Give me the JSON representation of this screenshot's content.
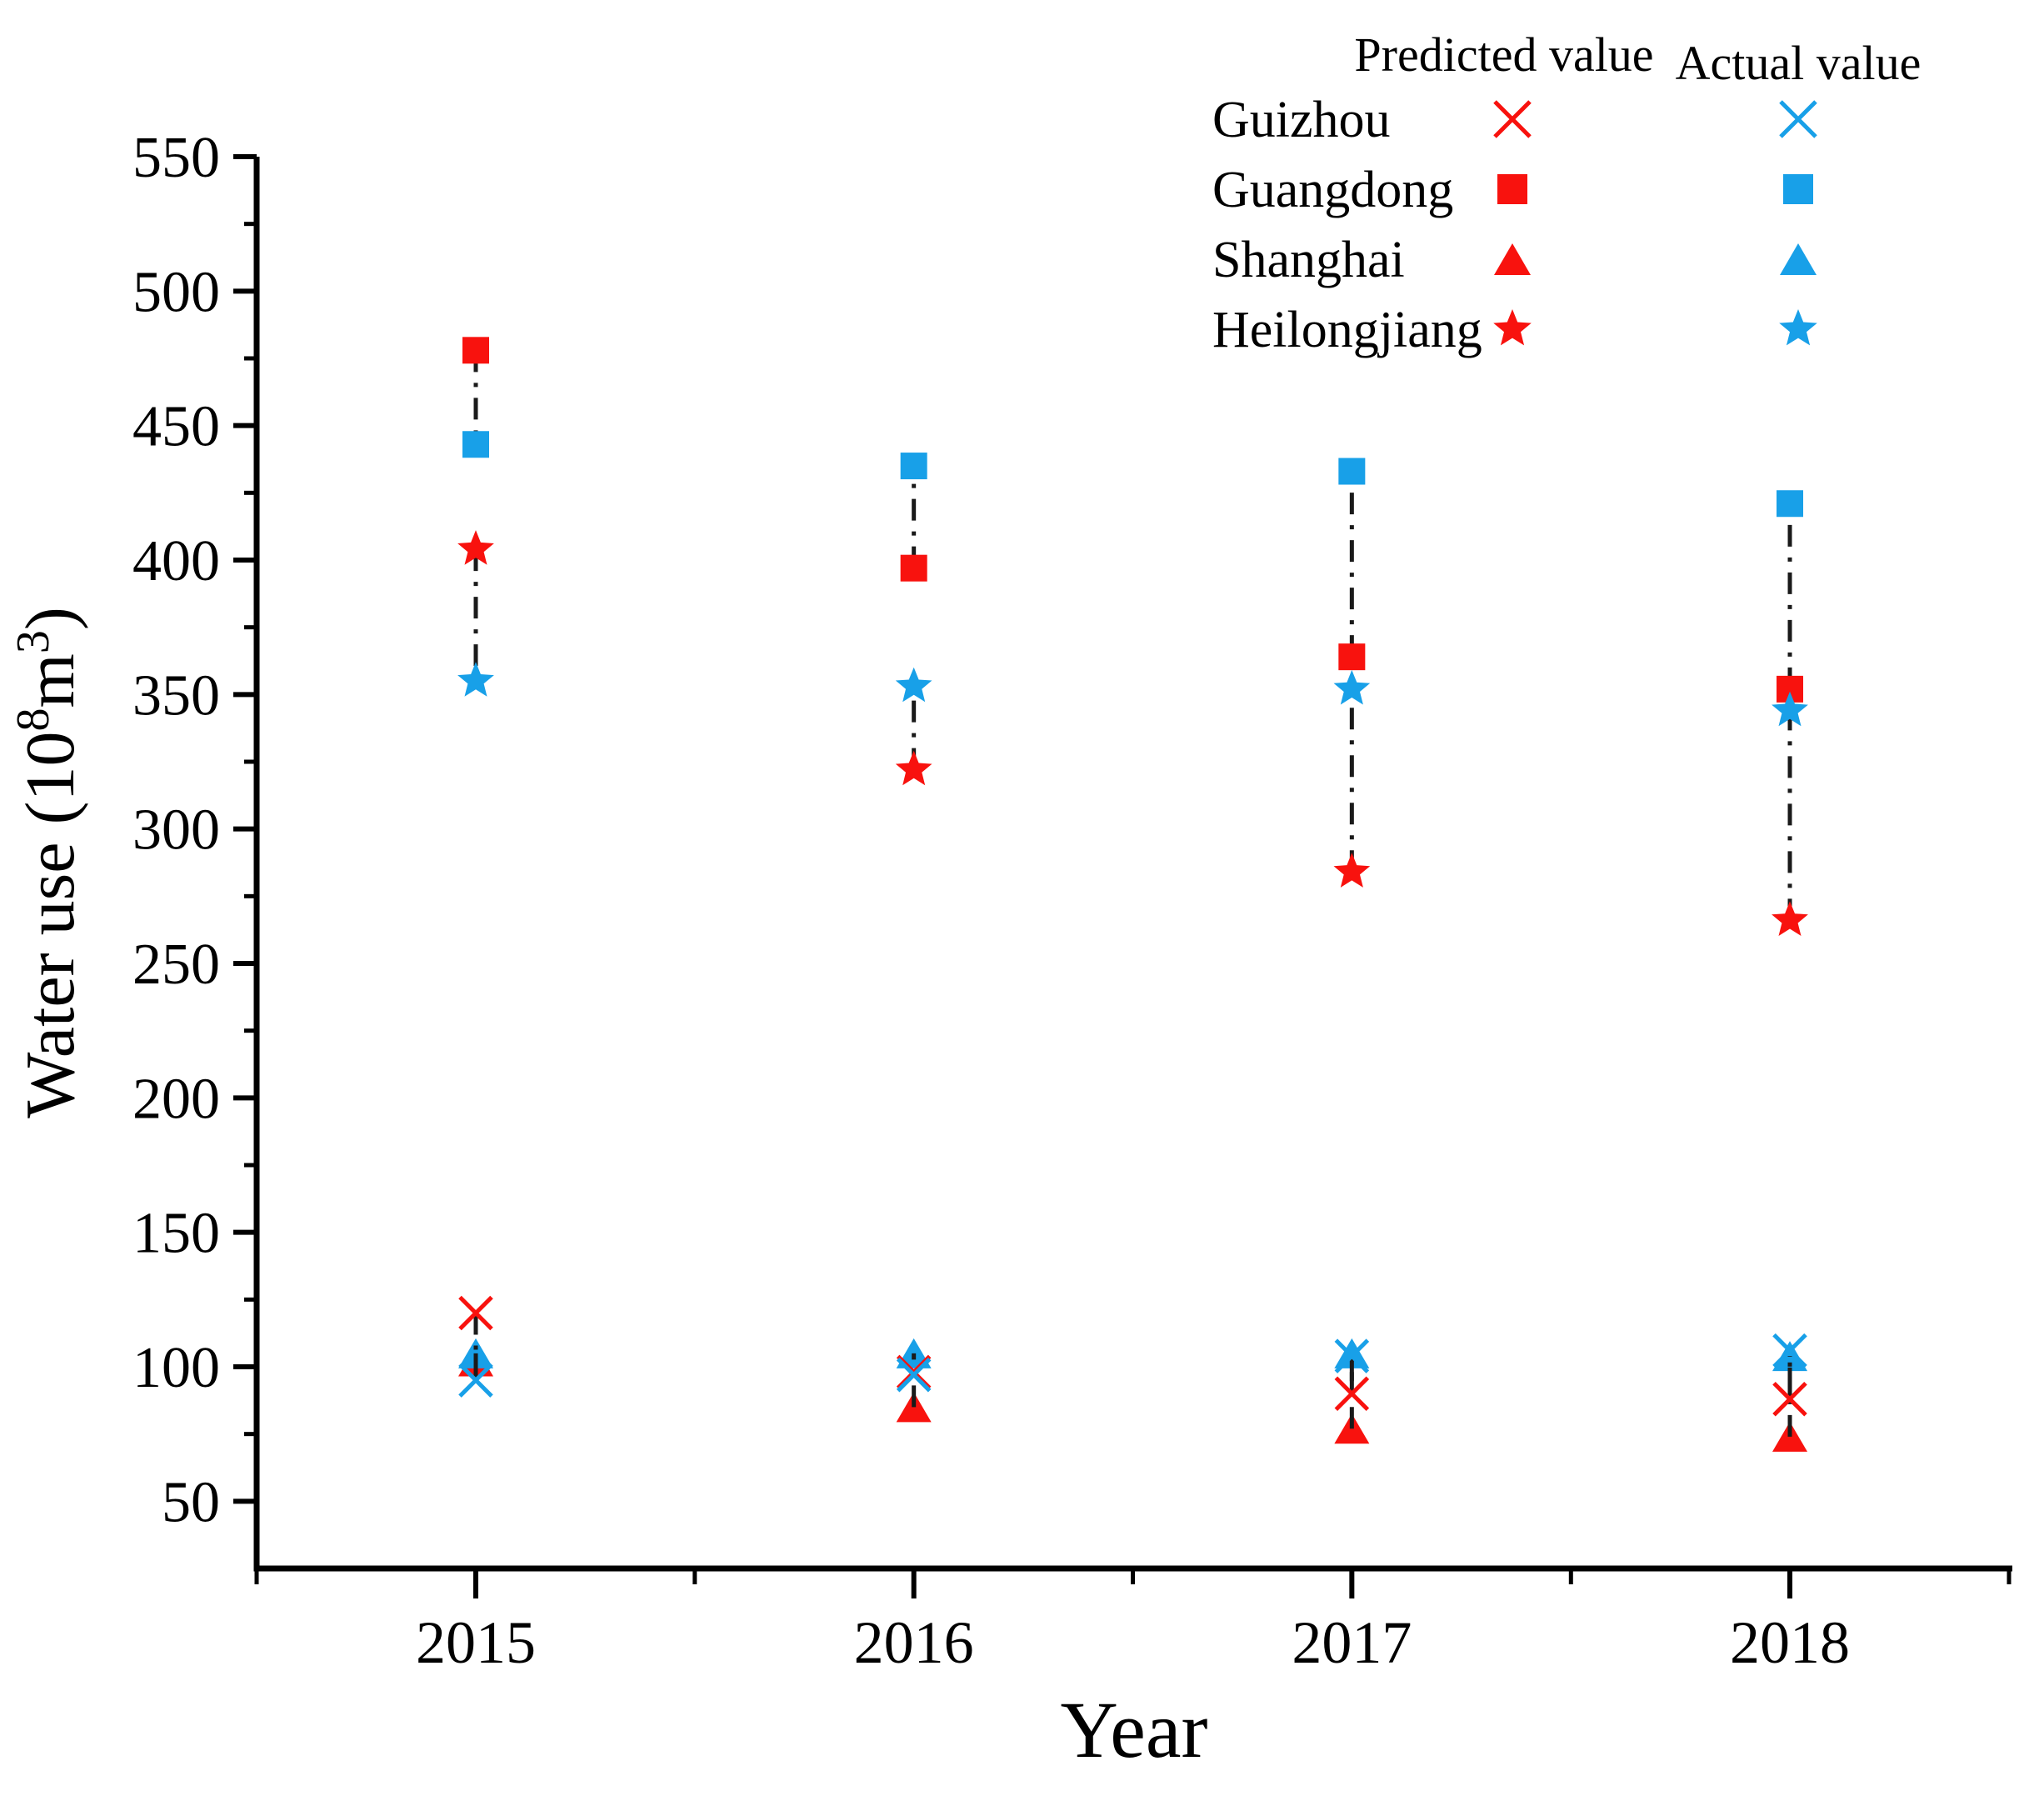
{
  "figure": {
    "y_axis_label_parts": [
      {
        "text": "Water use (10",
        "sup": false
      },
      {
        "text": "8",
        "sup": true
      },
      {
        "text": "m",
        "sup": false
      },
      {
        "text": "3",
        "sup": true
      },
      {
        "text": ")",
        "sup": false
      }
    ],
    "legend": {
      "predicted_header": "Predicted value",
      "actual_header": "Actual value"
    },
    "colors": {
      "predicted": "#f8120e",
      "actual": "#18a0e8",
      "actual_header_text": "#3ea8ef",
      "predicted_header_text": "#f8120e",
      "connector": "#1a1a1a",
      "axis": "#000000"
    }
  },
  "chart_data": {
    "type": "scatter",
    "title": "",
    "xlabel": "Year",
    "ylabel": "Water use (10⁸m³)",
    "x": [
      2015,
      2016,
      2017,
      2018
    ],
    "yticks": [
      50,
      100,
      150,
      200,
      250,
      300,
      350,
      400,
      450,
      500,
      550
    ],
    "ylim": [
      25,
      550
    ],
    "grid": false,
    "legend_position": "top-right",
    "units": "10^8 m^3",
    "series": [
      {
        "name": "Guizhou",
        "marker": "x",
        "role": "predicted",
        "color": "#f8120e",
        "values": [
          120,
          98,
          90,
          88
        ]
      },
      {
        "name": "Guizhou",
        "marker": "x",
        "role": "actual",
        "color": "#18a0e8",
        "values": [
          95,
          97,
          104,
          106
        ]
      },
      {
        "name": "Guangdong",
        "marker": "square",
        "role": "predicted",
        "color": "#f8120e",
        "values": [
          478,
          397,
          364,
          352
        ]
      },
      {
        "name": "Guangdong",
        "marker": "square",
        "role": "actual",
        "color": "#18a0e8",
        "values": [
          443,
          435,
          433,
          421
        ]
      },
      {
        "name": "Shanghai",
        "marker": "triangle",
        "role": "predicted",
        "color": "#f8120e",
        "values": [
          102,
          85,
          77,
          74
        ]
      },
      {
        "name": "Shanghai",
        "marker": "triangle",
        "role": "actual",
        "color": "#18a0e8",
        "values": [
          105,
          105,
          105,
          104
        ]
      },
      {
        "name": "Heilongjiang",
        "marker": "star",
        "role": "predicted",
        "color": "#f8120e",
        "values": [
          404,
          322,
          284,
          266
        ]
      },
      {
        "name": "Heilongjiang",
        "marker": "star",
        "role": "actual",
        "color": "#18a0e8",
        "values": [
          355,
          353,
          352,
          344
        ]
      }
    ]
  }
}
